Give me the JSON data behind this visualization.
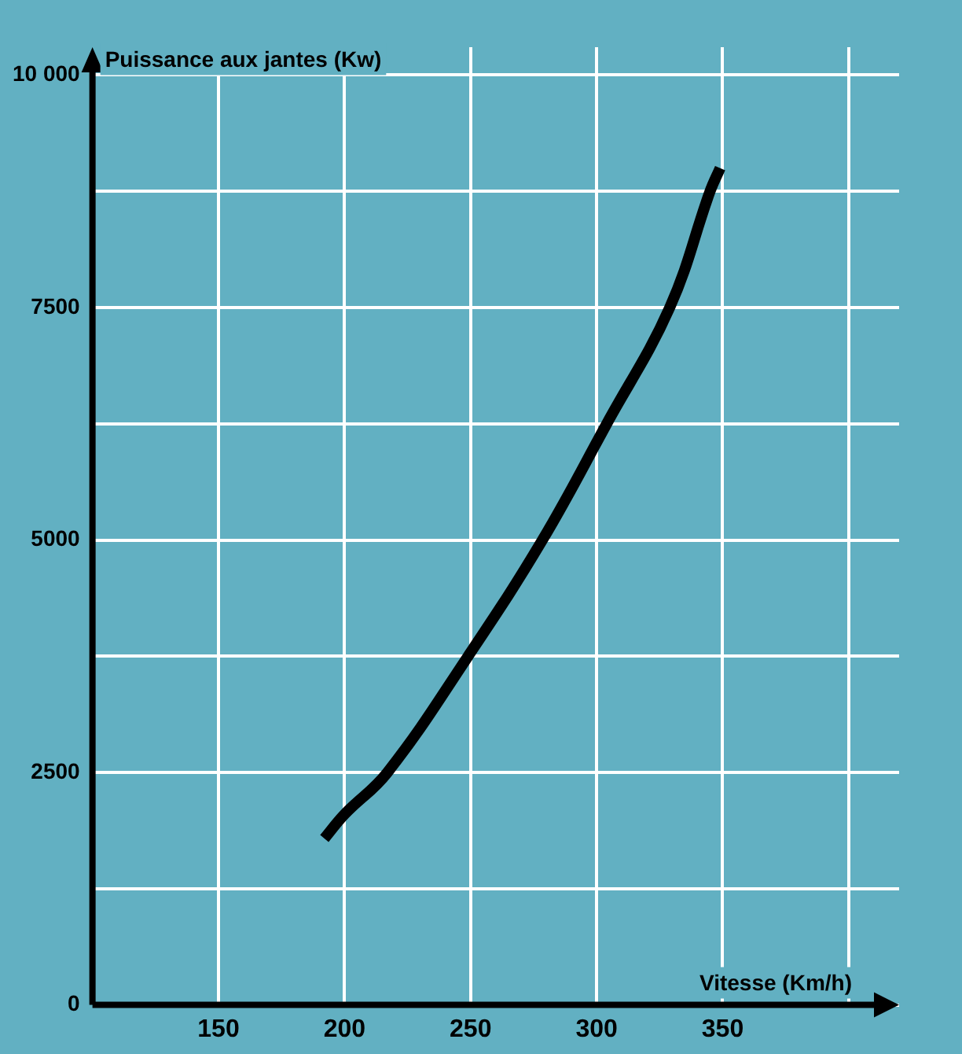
{
  "chart_data": {
    "type": "line",
    "xlabel": "Vitesse (Km/h)",
    "ylabel": "Puissance aux jantes (Kw)",
    "x": [
      192,
      200,
      217,
      249,
      278.5,
      304,
      329,
      345,
      349
    ],
    "series": [
      {
        "color": "#000000",
        "values": [
          1790,
          2050,
          2500,
          3750,
          5000,
          6250,
          7500,
          8750,
          9000
        ]
      }
    ],
    "xlim": [
      100,
      420
    ],
    "xticks": [
      150,
      200,
      250,
      300,
      350,
      {
        "value": 400,
        "label": null
      }
    ],
    "ylim": [
      0,
      10300
    ],
    "yticks": [
      0,
      {
        "value": 1250,
        "label": null
      },
      2500,
      {
        "value": 3750,
        "label": null
      },
      5000,
      {
        "value": 6250,
        "label": null
      },
      7500,
      {
        "value": 8750,
        "label": null
      },
      {
        "value": 10000,
        "label": "10 000"
      }
    ],
    "grid": true,
    "marker": "none",
    "line_style": "solid",
    "legend": false
  }
}
